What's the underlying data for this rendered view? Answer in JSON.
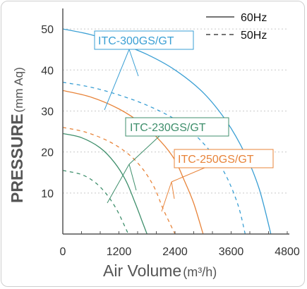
{
  "chart_data": {
    "type": "line",
    "xlabel": "Air Volume",
    "xlabel_unit": "(m³/h)",
    "ylabel": "PRESSURE",
    "ylabel_unit": "(mm Aq)",
    "xlim": [
      0,
      4800
    ],
    "ylim": [
      0,
      55
    ],
    "x_ticks": [
      "0",
      "1200",
      "2400",
      "3600",
      "4800"
    ],
    "y_ticks": [
      "10",
      "20",
      "30",
      "40",
      "50"
    ],
    "legend": [
      {
        "label": "60Hz",
        "style": "solid"
      },
      {
        "label": "50Hz",
        "style": "dashed"
      }
    ],
    "legend_placement": "top-right",
    "models": [
      {
        "label": "ITC-300GS/GT",
        "color": "#3a9fd4"
      },
      {
        "label": "ITC-230GS/GT",
        "color": "#3f8f6c"
      },
      {
        "label": "ITC-250GS/GT",
        "color": "#e8843a"
      }
    ],
    "series": [
      {
        "model": 0,
        "freq": "60Hz",
        "style": "solid",
        "points": [
          [
            0,
            50
          ],
          [
            600,
            48.6
          ],
          [
            1200,
            46.5
          ],
          [
            1800,
            43.8
          ],
          [
            2400,
            40
          ],
          [
            3000,
            34.5
          ],
          [
            3500,
            27.5
          ],
          [
            3900,
            19.5
          ],
          [
            4200,
            11
          ],
          [
            4450,
            0
          ]
        ]
      },
      {
        "model": 0,
        "freq": "50Hz",
        "style": "dashed",
        "points": [
          [
            0,
            37
          ],
          [
            600,
            35.8
          ],
          [
            1200,
            33.9
          ],
          [
            1800,
            31.4
          ],
          [
            2400,
            28
          ],
          [
            2800,
            24.5
          ],
          [
            3200,
            19.5
          ],
          [
            3500,
            14
          ],
          [
            3750,
            7
          ],
          [
            3900,
            0
          ]
        ]
      },
      {
        "model": 2,
        "freq": "60Hz",
        "style": "solid",
        "points": [
          [
            0,
            35
          ],
          [
            600,
            33.4
          ],
          [
            1200,
            30.5
          ],
          [
            1700,
            26.8
          ],
          [
            2100,
            22.5
          ],
          [
            2400,
            18
          ],
          [
            2600,
            13
          ],
          [
            2800,
            7.5
          ],
          [
            3000,
            0
          ]
        ]
      },
      {
        "model": 2,
        "freq": "50Hz",
        "style": "dashed",
        "points": [
          [
            0,
            26
          ],
          [
            500,
            24.8
          ],
          [
            1000,
            22.5
          ],
          [
            1400,
            19.5
          ],
          [
            1700,
            16
          ],
          [
            1950,
            11.5
          ],
          [
            2150,
            6
          ],
          [
            2400,
            0
          ]
        ]
      },
      {
        "model": 1,
        "freq": "60Hz",
        "style": "solid",
        "points": [
          [
            0,
            24.5
          ],
          [
            400,
            23.5
          ],
          [
            800,
            21
          ],
          [
            1100,
            17.5
          ],
          [
            1350,
            13
          ],
          [
            1550,
            7.5
          ],
          [
            1700,
            3
          ],
          [
            1800,
            0
          ]
        ]
      },
      {
        "model": 1,
        "freq": "50Hz",
        "style": "dashed",
        "points": [
          [
            0,
            15.5
          ],
          [
            400,
            14.5
          ],
          [
            700,
            12.5
          ],
          [
            950,
            9.5
          ],
          [
            1150,
            6
          ],
          [
            1300,
            2.5
          ],
          [
            1400,
            0
          ]
        ]
      }
    ]
  }
}
